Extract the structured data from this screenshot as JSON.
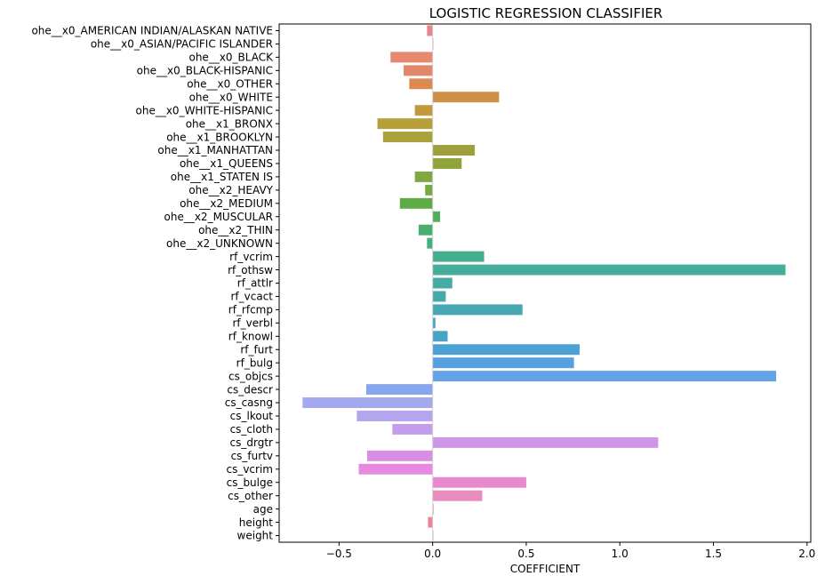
{
  "chart_data": {
    "type": "bar",
    "orientation": "horizontal",
    "title": "LOGISTIC REGRESSION CLASSIFIER",
    "xlabel": "COEFFICIENT",
    "ylabel": "",
    "xlim": [
      -0.82,
      2.02
    ],
    "xticks": [
      -0.5,
      0.0,
      0.5,
      1.0,
      1.5,
      2.0
    ],
    "xtick_labels": [
      "−0.5",
      "0.0",
      "0.5",
      "1.0",
      "1.5",
      "2.0"
    ],
    "grid": false,
    "legend": "none",
    "categories": [
      "ohe__x0_AMERICAN INDIAN/ALASKAN NATIVE",
      "ohe__x0_ASIAN/PACIFIC ISLANDER",
      "ohe__x0_BLACK",
      "ohe__x0_BLACK-HISPANIC",
      "ohe__x0_OTHER",
      "ohe__x0_WHITE",
      "ohe__x0_WHITE-HISPANIC",
      "ohe__x1_BRONX",
      "ohe__x1_BROOKLYN",
      "ohe__x1_MANHATTAN",
      "ohe__x1_QUEENS",
      "ohe__x1_STATEN IS",
      "ohe__x2_HEAVY",
      "ohe__x2_MEDIUM",
      "ohe__x2_MUSCULAR",
      "ohe__x2_THIN",
      "ohe__x2_UNKNOWN",
      "rf_vcrim",
      "rf_othsw",
      "rf_attlr",
      "rf_vcact",
      "rf_rfcmp",
      "rf_verbl",
      "rf_knowl",
      "rf_furt",
      "rf_bulg",
      "cs_objcs",
      "cs_descr",
      "cs_casng",
      "cs_lkout",
      "cs_cloth",
      "cs_drgtr",
      "cs_furtv",
      "cs_vcrim",
      "cs_bulge",
      "cs_other",
      "age",
      "height",
      "weight"
    ],
    "values": [
      -0.03,
      0.0,
      -0.225,
      -0.155,
      -0.125,
      0.355,
      -0.095,
      -0.295,
      -0.265,
      0.225,
      0.155,
      -0.095,
      -0.04,
      -0.175,
      0.04,
      -0.075,
      -0.03,
      0.275,
      1.885,
      0.105,
      0.07,
      0.48,
      0.015,
      0.08,
      0.785,
      0.755,
      1.835,
      -0.355,
      -0.695,
      -0.405,
      -0.215,
      1.205,
      -0.35,
      -0.395,
      0.5,
      0.265,
      0.005,
      -0.025,
      0.0
    ],
    "colors": [
      "#e8838a",
      "#e5868a",
      "#e58a6f",
      "#e2876a",
      "#dd8a52",
      "#cf9147",
      "#c4983c",
      "#b8a038",
      "#aba13b",
      "#9ea03a",
      "#8fa53c",
      "#80a83f",
      "#73aa42",
      "#5eac46",
      "#52ad5c",
      "#4aad72",
      "#46ae82",
      "#45ae8f",
      "#45ad9b",
      "#45aba4",
      "#46aaab",
      "#47a8b4",
      "#48a6bc",
      "#4aa3c7",
      "#4da0d2",
      "#55a0de",
      "#62a2e6",
      "#88a6ec",
      "#a2a9ee",
      "#b3a5ee",
      "#c39deb",
      "#cd97e6",
      "#d98ee3",
      "#e58ae0",
      "#e889cf",
      "#e88bbe",
      "#e886ae",
      "#e8859d",
      "#e8838a"
    ]
  }
}
